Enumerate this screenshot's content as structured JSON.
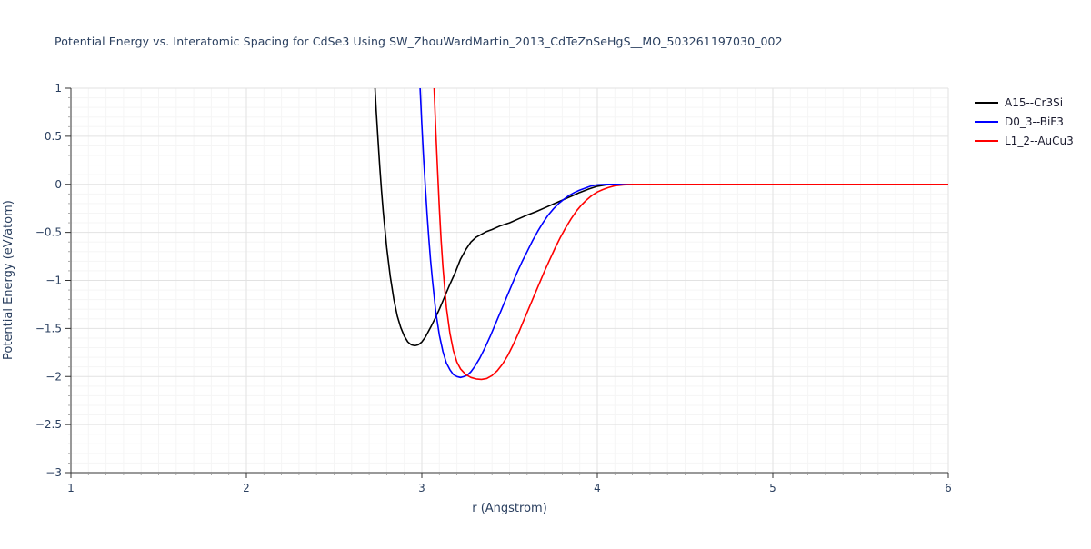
{
  "chart_data": {
    "type": "line",
    "title": "Potential Energy vs. Interatomic Spacing for CdSe3 Using SW_ZhouWardMartin_2013_CdTeZnSeHgS__MO_503261197030_002",
    "xlabel": "r (Angstrom)",
    "ylabel": "Potential Energy (eV/atom)",
    "xlim": [
      1,
      6
    ],
    "ylim": [
      -3,
      1
    ],
    "x_ticks": [
      1,
      2,
      3,
      4,
      5,
      6
    ],
    "y_ticks": [
      -3,
      -2.5,
      -2,
      -1.5,
      -1,
      -0.5,
      0,
      0.5,
      1
    ],
    "grid": true,
    "minor_grid": true,
    "legend_position": "top-right-outside",
    "colors": {
      "text": "#2a3f5f",
      "axis": "#333333",
      "major_grid": "#e2e2e2",
      "minor_grid": "#f5f5f5"
    },
    "series": [
      {
        "name": "A15--Cr3Si",
        "color": "#000000",
        "points": [
          [
            2.72,
            1.6
          ],
          [
            2.73,
            1.11
          ],
          [
            2.74,
            0.77
          ],
          [
            2.75,
            0.47
          ],
          [
            2.76,
            0.19
          ],
          [
            2.77,
            -0.06
          ],
          [
            2.78,
            -0.28
          ],
          [
            2.8,
            -0.66
          ],
          [
            2.82,
            -0.96
          ],
          [
            2.84,
            -1.19
          ],
          [
            2.86,
            -1.37
          ],
          [
            2.88,
            -1.49
          ],
          [
            2.9,
            -1.58
          ],
          [
            2.92,
            -1.64
          ],
          [
            2.94,
            -1.67
          ],
          [
            2.96,
            -1.68
          ],
          [
            2.98,
            -1.67
          ],
          [
            3.0,
            -1.64
          ],
          [
            3.02,
            -1.59
          ],
          [
            3.05,
            -1.49
          ],
          [
            3.08,
            -1.38
          ],
          [
            3.1,
            -1.3
          ],
          [
            3.13,
            -1.17
          ],
          [
            3.16,
            -1.04
          ],
          [
            3.19,
            -0.92
          ],
          [
            3.22,
            -0.78
          ],
          [
            3.25,
            -0.68
          ],
          [
            3.28,
            -0.6
          ],
          [
            3.31,
            -0.55
          ],
          [
            3.34,
            -0.52
          ],
          [
            3.37,
            -0.49
          ],
          [
            3.4,
            -0.47
          ],
          [
            3.45,
            -0.43
          ],
          [
            3.5,
            -0.4
          ],
          [
            3.55,
            -0.36
          ],
          [
            3.6,
            -0.32
          ],
          [
            3.65,
            -0.285
          ],
          [
            3.7,
            -0.245
          ],
          [
            3.75,
            -0.205
          ],
          [
            3.8,
            -0.165
          ],
          [
            3.85,
            -0.125
          ],
          [
            3.9,
            -0.085
          ],
          [
            3.95,
            -0.05
          ],
          [
            4.0,
            -0.02
          ],
          [
            4.05,
            -0.005
          ],
          [
            4.1,
            0
          ],
          [
            6.0,
            0
          ]
        ]
      },
      {
        "name": "D0_3--BiF3",
        "color": "#0000ff",
        "points": [
          [
            2.98,
            1.8
          ],
          [
            2.99,
            1.0
          ],
          [
            3.0,
            0.62
          ],
          [
            3.01,
            0.28
          ],
          [
            3.02,
            -0.03
          ],
          [
            3.03,
            -0.31
          ],
          [
            3.04,
            -0.56
          ],
          [
            3.05,
            -0.79
          ],
          [
            3.06,
            -0.99
          ],
          [
            3.08,
            -1.33
          ],
          [
            3.1,
            -1.57
          ],
          [
            3.12,
            -1.74
          ],
          [
            3.14,
            -1.86
          ],
          [
            3.16,
            -1.93
          ],
          [
            3.18,
            -1.98
          ],
          [
            3.2,
            -2.0
          ],
          [
            3.22,
            -2.01
          ],
          [
            3.24,
            -2.0
          ],
          [
            3.26,
            -1.985
          ],
          [
            3.28,
            -1.95
          ],
          [
            3.3,
            -1.9
          ],
          [
            3.33,
            -1.81
          ],
          [
            3.36,
            -1.7
          ],
          [
            3.39,
            -1.58
          ],
          [
            3.42,
            -1.45
          ],
          [
            3.45,
            -1.32
          ],
          [
            3.48,
            -1.19
          ],
          [
            3.51,
            -1.06
          ],
          [
            3.54,
            -0.93
          ],
          [
            3.57,
            -0.81
          ],
          [
            3.6,
            -0.7
          ],
          [
            3.63,
            -0.59
          ],
          [
            3.66,
            -0.49
          ],
          [
            3.69,
            -0.4
          ],
          [
            3.72,
            -0.32
          ],
          [
            3.75,
            -0.255
          ],
          [
            3.78,
            -0.2
          ],
          [
            3.81,
            -0.155
          ],
          [
            3.84,
            -0.115
          ],
          [
            3.87,
            -0.085
          ],
          [
            3.9,
            -0.06
          ],
          [
            3.93,
            -0.04
          ],
          [
            3.96,
            -0.02
          ],
          [
            4.0,
            -0.005
          ],
          [
            4.05,
            0
          ],
          [
            6.0,
            0
          ]
        ]
      },
      {
        "name": "L1_2--AuCu3",
        "color": "#ff0000",
        "points": [
          [
            3.06,
            1.8
          ],
          [
            3.07,
            1.0
          ],
          [
            3.08,
            0.55
          ],
          [
            3.09,
            0.13
          ],
          [
            3.1,
            -0.25
          ],
          [
            3.11,
            -0.58
          ],
          [
            3.12,
            -0.86
          ],
          [
            3.14,
            -1.28
          ],
          [
            3.16,
            -1.55
          ],
          [
            3.18,
            -1.73
          ],
          [
            3.2,
            -1.85
          ],
          [
            3.22,
            -1.92
          ],
          [
            3.25,
            -1.98
          ],
          [
            3.28,
            -2.01
          ],
          [
            3.31,
            -2.025
          ],
          [
            3.34,
            -2.03
          ],
          [
            3.37,
            -2.02
          ],
          [
            3.4,
            -1.99
          ],
          [
            3.43,
            -1.94
          ],
          [
            3.46,
            -1.87
          ],
          [
            3.49,
            -1.78
          ],
          [
            3.52,
            -1.67
          ],
          [
            3.55,
            -1.55
          ],
          [
            3.58,
            -1.42
          ],
          [
            3.61,
            -1.29
          ],
          [
            3.64,
            -1.16
          ],
          [
            3.67,
            -1.03
          ],
          [
            3.7,
            -0.9
          ],
          [
            3.73,
            -0.78
          ],
          [
            3.76,
            -0.66
          ],
          [
            3.79,
            -0.55
          ],
          [
            3.82,
            -0.45
          ],
          [
            3.85,
            -0.36
          ],
          [
            3.88,
            -0.28
          ],
          [
            3.91,
            -0.215
          ],
          [
            3.94,
            -0.16
          ],
          [
            3.97,
            -0.115
          ],
          [
            4.0,
            -0.08
          ],
          [
            4.03,
            -0.055
          ],
          [
            4.06,
            -0.035
          ],
          [
            4.1,
            -0.015
          ],
          [
            4.15,
            -0.005
          ],
          [
            4.2,
            0
          ],
          [
            6.0,
            0
          ]
        ]
      }
    ]
  }
}
